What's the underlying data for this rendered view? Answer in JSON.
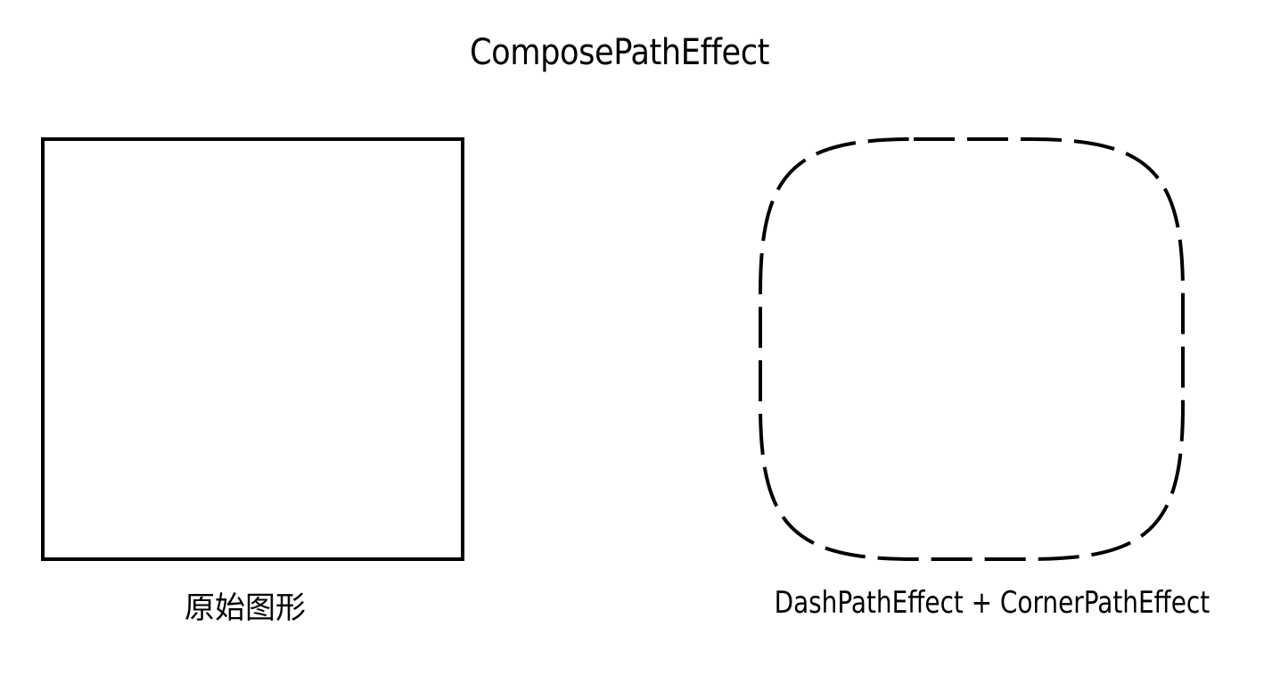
{
  "title": "ComposePathEffect",
  "panels": {
    "left": {
      "caption": "原始图形"
    },
    "right": {
      "caption": "DashPathEffect + CornerPathEffect"
    }
  },
  "colors": {
    "stroke": "#000000",
    "background": "#ffffff"
  }
}
